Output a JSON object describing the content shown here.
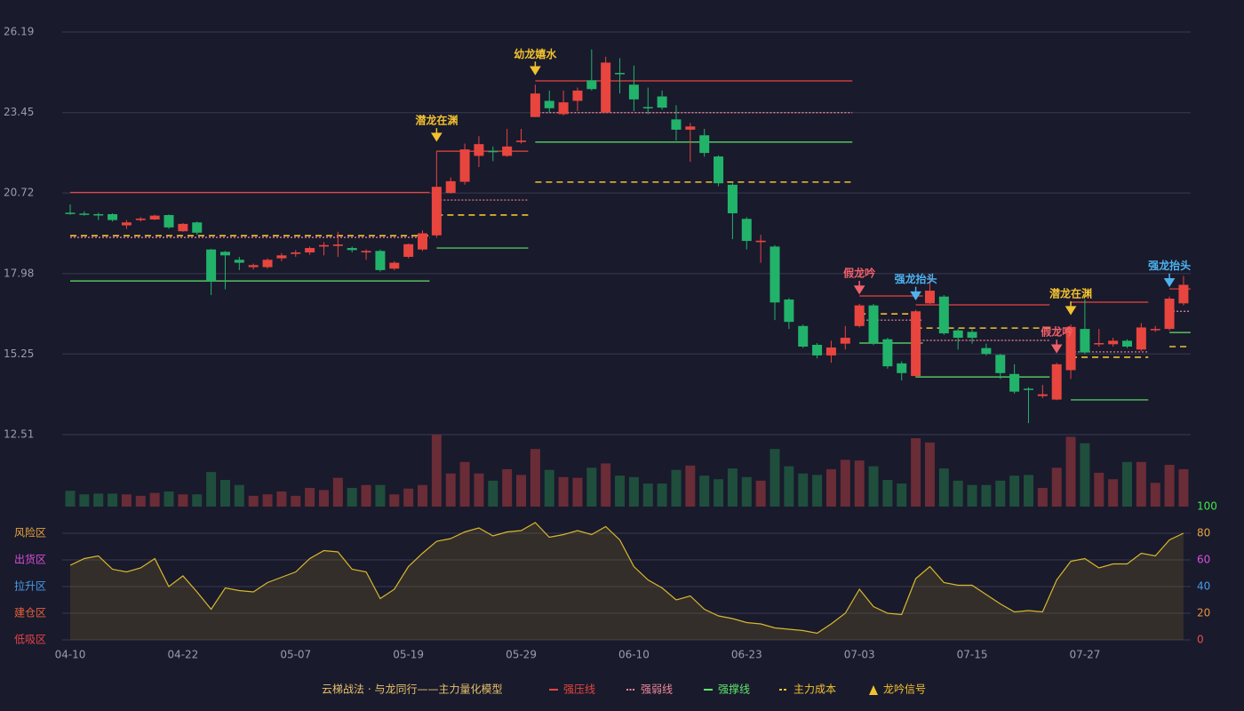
{
  "chart_data": [
    {
      "type": "candlestick",
      "title": "云梯战法 · 与龙同行——主力量化模型",
      "categories": [
        "04-10",
        null,
        null,
        null,
        null,
        null,
        null,
        null,
        "04-22",
        null,
        null,
        null,
        null,
        null,
        null,
        null,
        "05-07",
        null,
        null,
        null,
        null,
        null,
        null,
        null,
        "05-19",
        null,
        null,
        null,
        null,
        null,
        null,
        null,
        "05-29",
        null,
        null,
        null,
        null,
        null,
        null,
        null,
        "06-10",
        null,
        null,
        null,
        null,
        null,
        null,
        null,
        "06-23",
        null,
        null,
        null,
        null,
        null,
        null,
        null,
        "07-03",
        null,
        null,
        null,
        null,
        null,
        null,
        null,
        "07-15",
        null,
        null,
        null,
        null,
        null,
        null,
        null,
        "07-27",
        null,
        null,
        null,
        null,
        null,
        null,
        null
      ],
      "open": [
        20.05,
        20.02,
        20.0,
        20.0,
        19.62,
        19.8,
        19.82,
        19.97,
        19.42,
        19.72,
        18.8,
        18.72,
        18.45,
        18.2,
        18.2,
        18.5,
        18.65,
        18.7,
        18.9,
        18.92,
        18.85,
        18.7,
        18.75,
        18.15,
        18.55,
        18.8,
        19.28,
        20.72,
        21.1,
        21.98,
        22.15,
        21.98,
        22.45,
        23.3,
        23.85,
        23.4,
        23.85,
        24.55,
        23.45,
        24.8,
        24.4,
        23.64,
        24.0,
        23.22,
        22.87,
        22.68,
        21.96,
        21.0,
        19.84,
        19.05,
        18.9,
        17.1,
        16.2,
        15.56,
        15.2,
        15.6,
        16.2,
        16.9,
        15.75,
        14.93,
        14.5,
        16.97,
        17.2,
        16.05,
        16.0,
        15.45,
        15.22,
        14.57,
        14.07,
        13.82,
        13.7,
        14.7,
        16.1,
        15.58,
        15.58,
        15.7,
        15.4,
        16.08,
        16.1,
        16.97
      ],
      "high": [
        20.33,
        20.1,
        20.05,
        20.03,
        19.8,
        19.9,
        19.98,
        19.99,
        19.7,
        19.75,
        18.82,
        18.75,
        18.55,
        18.32,
        18.5,
        18.68,
        18.78,
        18.9,
        19.05,
        19.4,
        18.9,
        18.8,
        18.8,
        18.4,
        19.0,
        19.45,
        22.14,
        21.25,
        22.4,
        22.65,
        22.3,
        22.9,
        22.9,
        24.4,
        24.2,
        24.2,
        24.3,
        25.6,
        25.35,
        25.3,
        25.05,
        24.3,
        24.2,
        23.7,
        23.1,
        22.9,
        22.0,
        21.05,
        19.9,
        19.3,
        18.95,
        17.15,
        16.25,
        15.62,
        15.7,
        16.2,
        16.95,
        16.95,
        15.8,
        15.0,
        16.75,
        17.9,
        17.25,
        16.1,
        16.1,
        15.6,
        15.25,
        14.9,
        14.12,
        14.2,
        14.95,
        16.25,
        17.1,
        16.1,
        15.8,
        15.75,
        16.3,
        16.2,
        17.2,
        17.9
      ],
      "low": [
        19.98,
        19.95,
        19.8,
        19.75,
        19.5,
        19.75,
        19.8,
        19.5,
        19.4,
        19.3,
        17.25,
        17.45,
        18.1,
        18.12,
        18.15,
        18.4,
        18.55,
        18.62,
        18.6,
        18.55,
        18.7,
        18.45,
        18.05,
        18.1,
        18.5,
        18.75,
        19.2,
        20.7,
        21.0,
        21.6,
        21.8,
        21.95,
        22.4,
        23.3,
        23.45,
        23.35,
        23.5,
        24.2,
        23.45,
        24.1,
        23.5,
        23.4,
        23.55,
        22.5,
        21.78,
        21.95,
        20.95,
        19.15,
        18.8,
        18.35,
        16.4,
        16.1,
        15.45,
        15.1,
        14.95,
        15.4,
        16.15,
        15.55,
        14.75,
        14.35,
        14.45,
        16.95,
        15.9,
        15.4,
        15.6,
        15.2,
        14.4,
        13.9,
        12.9,
        13.75,
        13.68,
        14.4,
        15.25,
        15.5,
        15.5,
        15.45,
        15.35,
        16.0,
        16.05,
        16.9
      ],
      "close": [
        20.03,
        20.0,
        19.98,
        19.8,
        19.72,
        19.85,
        19.95,
        19.55,
        19.67,
        19.37,
        17.73,
        18.6,
        18.35,
        18.27,
        18.45,
        18.6,
        18.7,
        18.85,
        18.95,
        18.97,
        18.78,
        18.75,
        18.1,
        18.35,
        18.98,
        19.35,
        20.93,
        21.12,
        22.2,
        22.38,
        22.14,
        22.3,
        22.5,
        24.1,
        23.6,
        23.8,
        24.2,
        24.25,
        25.15,
        24.78,
        23.9,
        23.6,
        23.62,
        22.87,
        22.98,
        22.08,
        21.05,
        20.03,
        19.09,
        19.1,
        17.0,
        16.34,
        15.5,
        15.2,
        15.47,
        15.8,
        16.9,
        15.62,
        14.83,
        14.6,
        16.7,
        17.4,
        15.95,
        15.8,
        15.8,
        15.25,
        14.6,
        13.97,
        14.03,
        13.88,
        14.9,
        16.17,
        15.3,
        15.62,
        15.7,
        15.5,
        16.15,
        16.1,
        17.13,
        17.6
      ],
      "up_color": "#e8453f",
      "down_color": "#22b36b",
      "ylim": [
        12.51,
        26.19
      ],
      "yticks": [
        12.51,
        15.25,
        17.98,
        20.72,
        23.45,
        26.19
      ],
      "grid": true,
      "legend": [
        {
          "label": "强压线",
          "color": "#e8453f",
          "style": "solid"
        },
        {
          "label": "强弱线",
          "color": "#f08a9a",
          "style": "dotted"
        },
        {
          "label": "强撑线",
          "color": "#5ee66a",
          "style": "solid"
        },
        {
          "label": "主力成本",
          "color": "#f2c12e",
          "style": "dashed"
        },
        {
          "label": "龙吟信号",
          "color": "#f2c12e",
          "style": "triangle"
        }
      ],
      "levels": [
        {
          "line": 0,
          "from": 0,
          "to": 25,
          "value": 20.74
        },
        {
          "line": 1,
          "from": 0,
          "to": 25,
          "value": 19.21
        },
        {
          "line": 3,
          "from": 0,
          "to": 25,
          "value": 19.27
        },
        {
          "line": 2,
          "from": 0,
          "to": 25,
          "value": 17.73
        },
        {
          "line": 0,
          "from": 26,
          "to": 32,
          "value": 22.14
        },
        {
          "line": 1,
          "from": 26,
          "to": 32,
          "value": 20.48
        },
        {
          "line": 3,
          "from": 26,
          "to": 32,
          "value": 19.97
        },
        {
          "line": 2,
          "from": 26,
          "to": 32,
          "value": 18.85
        },
        {
          "line": 0,
          "from": 33,
          "to": 55,
          "value": 24.53
        },
        {
          "line": 1,
          "from": 33,
          "to": 55,
          "value": 23.45
        },
        {
          "line": 2,
          "from": 33,
          "to": 55,
          "value": 22.45
        },
        {
          "line": 3,
          "from": 33,
          "to": 55,
          "value": 21.09
        },
        {
          "line": 0,
          "from": 56,
          "to": 60,
          "value": 17.22
        },
        {
          "line": 3,
          "from": 56,
          "to": 60,
          "value": 16.61
        },
        {
          "line": 1,
          "from": 56,
          "to": 60,
          "value": 16.4
        },
        {
          "line": 2,
          "from": 56,
          "to": 60,
          "value": 15.62
        },
        {
          "line": 0,
          "from": 60,
          "to": 69,
          "value": 16.92
        },
        {
          "line": 3,
          "from": 60,
          "to": 69,
          "value": 16.13
        },
        {
          "line": 1,
          "from": 60,
          "to": 69,
          "value": 15.71
        },
        {
          "line": 2,
          "from": 60,
          "to": 69,
          "value": 14.47
        },
        {
          "line": 0,
          "from": 71,
          "to": 76,
          "value": 17.01
        },
        {
          "line": 1,
          "from": 71,
          "to": 76,
          "value": 15.32
        },
        {
          "line": 3,
          "from": 71,
          "to": 76,
          "value": 15.14
        },
        {
          "line": 2,
          "from": 71,
          "to": 76,
          "value": 13.69
        },
        {
          "line": 0,
          "from": 78,
          "to": 79,
          "value": 17.46
        },
        {
          "line": 1,
          "from": 78,
          "to": 79,
          "value": 16.7
        },
        {
          "line": 2,
          "from": 78,
          "to": 79,
          "value": 15.98
        },
        {
          "line": 3,
          "from": 78,
          "to": 79,
          "value": 15.5
        }
      ],
      "signals": [
        {
          "label": "潜龙在渊",
          "index": 26,
          "color": "#f2c12e"
        },
        {
          "label": "幼龙嬉水",
          "index": 33,
          "color": "#f2c12e"
        },
        {
          "label": "假龙吟",
          "index": 56,
          "color": "#f0606a"
        },
        {
          "label": "强龙抬头",
          "index": 60,
          "color": "#4db3f0"
        },
        {
          "label": "假龙吟",
          "index": 70,
          "color": "#f0606a"
        },
        {
          "label": "潜龙在渊",
          "index": 71,
          "color": "#f2c12e"
        },
        {
          "label": "强龙抬头",
          "index": 78,
          "color": "#4db3f0"
        }
      ]
    },
    {
      "type": "bar",
      "values": [
        22,
        17,
        18,
        18,
        17,
        15,
        19,
        21,
        17,
        17,
        48,
        37,
        30,
        15,
        17,
        21,
        15,
        26,
        23,
        40,
        26,
        30,
        30,
        17,
        25,
        30,
        100,
        46,
        62,
        46,
        36,
        52,
        44,
        80,
        51,
        41,
        40,
        54,
        60,
        43,
        41,
        32,
        32,
        51,
        57,
        43,
        38,
        53,
        41,
        36,
        80,
        56,
        46,
        44,
        52,
        65,
        64,
        56,
        37,
        32,
        95,
        89,
        53,
        36,
        30,
        30,
        36,
        43,
        44,
        26,
        54,
        97,
        88,
        47,
        38,
        62,
        62,
        33,
        58,
        52
      ],
      "up_color": "#6a2c36",
      "down_color": "#1f4e3c",
      "ylim": [
        0,
        100
      ]
    },
    {
      "type": "area",
      "values": [
        56,
        61,
        63,
        53,
        51,
        54,
        61,
        40,
        48,
        36,
        23,
        39,
        37,
        36,
        43,
        47,
        51,
        61,
        67,
        66,
        53,
        51,
        31,
        38,
        55,
        65,
        74,
        76,
        81,
        84,
        78,
        81,
        82,
        88,
        77,
        79,
        82,
        79,
        85,
        75,
        55,
        45,
        39,
        30,
        33,
        23,
        18,
        16,
        13,
        12,
        9,
        8,
        7,
        5,
        12,
        20,
        38,
        25,
        20,
        19,
        46,
        55,
        43,
        41,
        41,
        34,
        27,
        21,
        22,
        21,
        45,
        59,
        61,
        54,
        57,
        57,
        65,
        63,
        75,
        80
      ],
      "color": "#d9b82b",
      "ylim": [
        0,
        100
      ],
      "yticks": [
        0,
        20,
        40,
        60,
        80,
        100
      ],
      "ytick_colors": [
        "#e8504a",
        "#e8903a",
        "#4a9be8",
        "#d94fd9",
        "#e8a33d",
        "#3ee84a"
      ],
      "grid": true,
      "zones": [
        {
          "label": "低吸区",
          "value": 0,
          "color": "#e8424a"
        },
        {
          "label": "建仓区",
          "value": 20,
          "color": "#e8603a"
        },
        {
          "label": "拉升区",
          "value": 40,
          "color": "#4a9be8"
        },
        {
          "label": "出货区",
          "value": 60,
          "color": "#d94fd9"
        },
        {
          "label": "风险区",
          "value": 80,
          "color": "#e8a33d"
        }
      ]
    }
  ]
}
